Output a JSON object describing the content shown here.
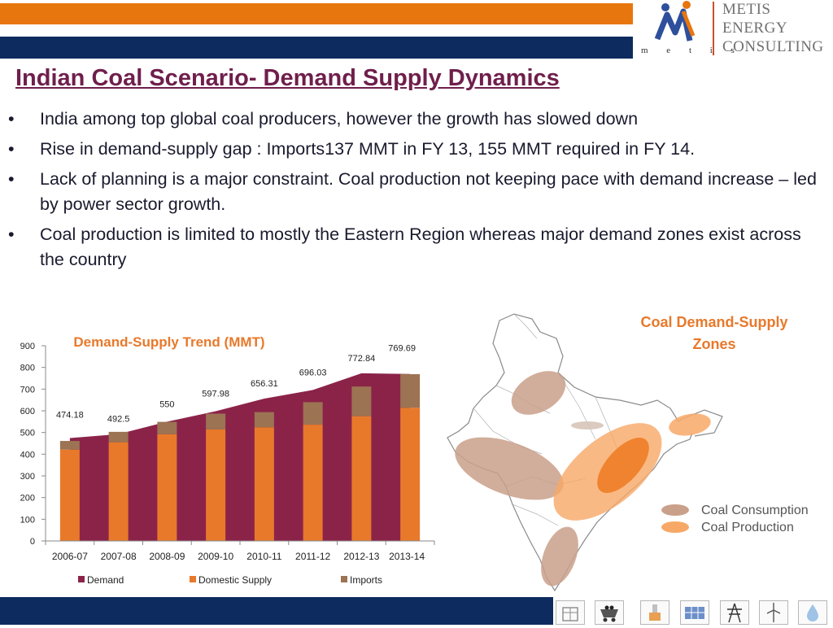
{
  "header": {
    "logo_lines": [
      "METIS",
      "ENERGY",
      "CONSULTING"
    ],
    "logo_small": "m e t i s",
    "colors": {
      "orange": "#e8760e",
      "navy": "#0d2b5e",
      "title": "#6f1f4c"
    }
  },
  "title": "Indian Coal Scenario- Demand Supply Dynamics",
  "bullets": [
    {
      "marker": "•",
      "text": "India among top global coal producers, however the growth has slowed down"
    },
    {
      "marker": "•",
      "text": "Rise in demand-supply gap : Imports137 MMT in FY 13, 155 MMT required in FY 14."
    },
    {
      "marker": "•",
      "text": "Lack of planning is a major constraint. Coal production not keeping pace with demand increase – led by power sector growth."
    },
    {
      "marker": "•",
      "text": "Coal production is limited to mostly the Eastern Region whereas major demand zones exist across the country"
    }
  ],
  "chart_data": {
    "type": "bar",
    "title": "Demand-Supply Trend (MMT)",
    "categories": [
      "2006-07",
      "2007-08",
      "2008-09",
      "2009-10",
      "2010-11",
      "2011-12",
      "2012-13",
      "2013-14"
    ],
    "series": [
      {
        "name": "Demand",
        "kind": "area",
        "color": "#8b2349",
        "values": [
          474.18,
          492.5,
          550,
          597.98,
          656.31,
          696.03,
          772.84,
          769.69
        ]
      },
      {
        "name": "Domestic Supply",
        "kind": "stacked-bar",
        "color": "#e8792b",
        "values": [
          421,
          455,
          492,
          514,
          524,
          536,
          575,
          614
        ]
      },
      {
        "name": "Imports",
        "kind": "stacked-bar",
        "color": "#9c7353",
        "values": [
          40,
          48,
          57,
          73,
          70,
          104,
          137,
          155
        ]
      }
    ],
    "data_labels": [
      "474.18",
      "492.5",
      "550",
      "597.98",
      "656.31",
      "696.03",
      "772.84",
      "769.69"
    ],
    "yticks": [
      0,
      100,
      200,
      300,
      400,
      500,
      600,
      700,
      800,
      900
    ],
    "ylim": [
      0,
      900
    ],
    "legend": [
      "Demand",
      "Domestic Supply",
      "Imports"
    ]
  },
  "map": {
    "title_line1": "Coal Demand-Supply",
    "title_line2": "Zones",
    "legend": [
      {
        "label": "Coal Consumption",
        "color": "#c9a08a"
      },
      {
        "label": "Coal Production",
        "color": "#f7a866"
      }
    ]
  },
  "footer_icons": [
    "building-icon",
    "coal-cart-icon",
    "power-plant-icon",
    "solar-panel-icon",
    "transmission-tower-icon",
    "wind-turbine-icon",
    "water-drop-icon"
  ]
}
